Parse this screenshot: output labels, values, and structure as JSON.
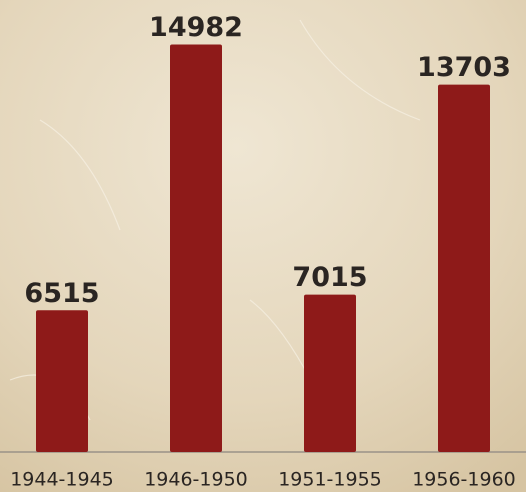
{
  "chart_data": {
    "type": "bar",
    "categories": [
      "1944-1945",
      "1946-1950",
      "1951-1955",
      "1956-1960"
    ],
    "values": [
      6515,
      14982,
      7015,
      13703
    ],
    "color": "#8e1a19",
    "ylim": [
      2000,
      16400
    ]
  }
}
